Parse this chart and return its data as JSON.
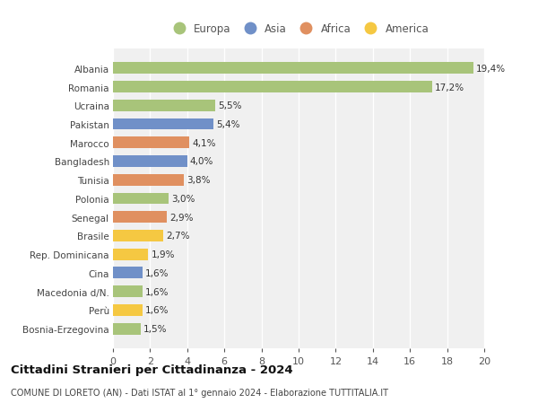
{
  "categories": [
    "Bosnia-Erzegovina",
    "Perù",
    "Macedonia d/N.",
    "Cina",
    "Rep. Dominicana",
    "Brasile",
    "Senegal",
    "Polonia",
    "Tunisia",
    "Bangladesh",
    "Marocco",
    "Pakistan",
    "Ucraina",
    "Romania",
    "Albania"
  ],
  "values": [
    1.5,
    1.6,
    1.6,
    1.6,
    1.9,
    2.7,
    2.9,
    3.0,
    3.8,
    4.0,
    4.1,
    5.4,
    5.5,
    17.2,
    19.4
  ],
  "colors": [
    "#a8c47a",
    "#f5c842",
    "#a8c47a",
    "#7090c8",
    "#f5c842",
    "#f5c842",
    "#e09060",
    "#a8c47a",
    "#e09060",
    "#7090c8",
    "#e09060",
    "#7090c8",
    "#a8c47a",
    "#a8c47a",
    "#a8c47a"
  ],
  "labels": [
    "1,5%",
    "1,6%",
    "1,6%",
    "1,6%",
    "1,9%",
    "2,7%",
    "2,9%",
    "3,0%",
    "3,8%",
    "4,0%",
    "4,1%",
    "5,4%",
    "5,5%",
    "17,2%",
    "19,4%"
  ],
  "legend": {
    "Europa": "#a8c47a",
    "Asia": "#7090c8",
    "Africa": "#e09060",
    "America": "#f5c842"
  },
  "title": "Cittadini Stranieri per Cittadinanza - 2024",
  "subtitle": "COMUNE DI LORETO (AN) - Dati ISTAT al 1° gennaio 2024 - Elaborazione TUTTITALIA.IT",
  "xlim": [
    0,
    20
  ],
  "xticks": [
    0,
    2,
    4,
    6,
    8,
    10,
    12,
    14,
    16,
    18,
    20
  ],
  "plot_bgcolor": "#f0f0f0",
  "fig_bgcolor": "#ffffff",
  "bar_height": 0.62,
  "label_fontsize": 7.5,
  "ytick_fontsize": 7.5,
  "xtick_fontsize": 8,
  "legend_fontsize": 8.5,
  "title_fontsize": 9.5,
  "subtitle_fontsize": 7
}
